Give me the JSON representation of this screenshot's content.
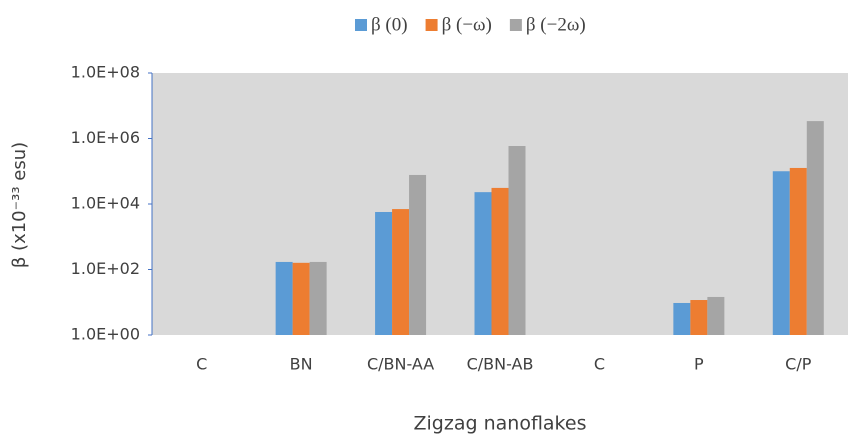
{
  "chart_data": {
    "type": "bar",
    "x_label": "Zigzag nanoflakes",
    "y_label": "β (x10⁻³³ esu)",
    "categories": [
      "C",
      "BN",
      "C/BN-AA",
      "C/BN-AB",
      "C",
      "P",
      "C/P"
    ],
    "series": [
      {
        "name": "β (0)",
        "color": "#5b9bd5",
        "values": [
          null,
          170,
          5700,
          23000,
          null,
          9.5,
          100000
        ]
      },
      {
        "name": "β (−ω)",
        "color": "#ed7d31",
        "values": [
          null,
          160,
          7000,
          31000,
          null,
          11.7,
          126000
        ]
      },
      {
        "name": "β (−2ω)",
        "color": "#a5a5a5",
        "values": [
          null,
          170,
          77000,
          590000,
          null,
          14.5,
          3400000
        ]
      }
    ],
    "log_scale": true,
    "grid": false,
    "legend": "top",
    "ylim": [
      1,
      100000000
    ],
    "yticks": [
      {
        "value": 1,
        "label": "1.0E+00"
      },
      {
        "value": 100,
        "label": "1.0E+02"
      },
      {
        "value": 10000,
        "label": "1.0E+04"
      },
      {
        "value": 1000000,
        "label": "1.0E+06"
      },
      {
        "value": 100000000,
        "label": "1.0E+08"
      }
    ]
  }
}
